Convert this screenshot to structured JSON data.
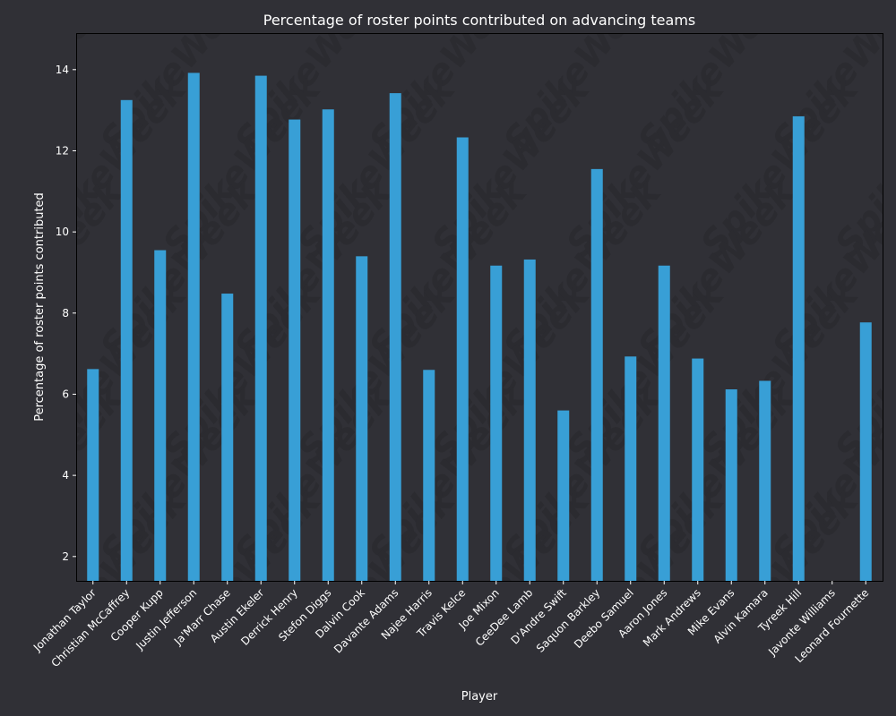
{
  "chart_data": {
    "type": "bar",
    "title": "Percentage of roster points contributed on advancing teams",
    "xlabel": "Player",
    "ylabel": "Percentage of roster points contributed",
    "ylim": [
      1.4,
      14.9
    ],
    "yticks": [
      2,
      4,
      6,
      8,
      10,
      12,
      14
    ],
    "categories": [
      "Jonathan Taylor",
      "Christian McCaffrey",
      "Cooper Kupp",
      "Justin Jefferson",
      "Ja'Marr Chase",
      "Austin Ekeler",
      "Derrick Henry",
      "Stefon Diggs",
      "Dalvin Cook",
      "Davante Adams",
      "Najee Harris",
      "Travis Kelce",
      "Joe Mixon",
      "CeeDee Lamb",
      "D'Andre Swift",
      "Saquon Barkley",
      "Deebo Samuel",
      "Aaron Jones",
      "Mark Andrews",
      "Mike Evans",
      "Alvin Kamara",
      "Tyreek Hill",
      "Javonte Williams",
      "Leonard Fournette"
    ],
    "values": [
      6.62,
      13.25,
      9.55,
      13.92,
      8.48,
      13.85,
      12.77,
      13.02,
      9.4,
      13.42,
      6.6,
      12.33,
      9.17,
      9.32,
      5.6,
      11.55,
      6.93,
      9.17,
      6.88,
      6.12,
      6.33,
      12.85,
      null,
      7.77
    ],
    "bar_color": "#389fd6",
    "background": "#303036",
    "watermark": "SpikeWeek",
    "grid": false
  }
}
